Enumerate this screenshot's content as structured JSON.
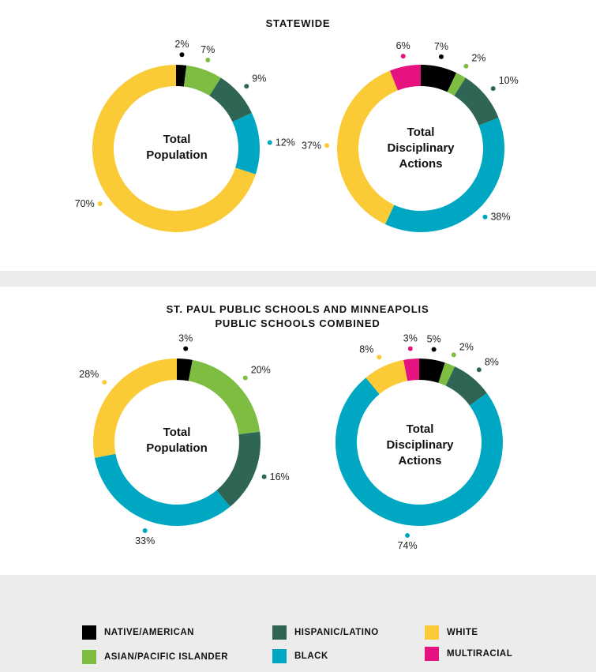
{
  "colors": {
    "native_american": "#000000",
    "asian_pacific_islander": "#7cbd42",
    "hispanic_latino": "#2f6555",
    "black": "#00a7c2",
    "white": "#fbcb37",
    "multiracial": "#e5127f"
  },
  "sections": [
    {
      "title": "STATEWIDE"
    },
    {
      "title": "ST. PAUL PUBLIC SCHOOLS AND MINNEAPOLIS PUBLIC SCHOOLS COMBINED"
    }
  ],
  "legend": [
    {
      "label": "NATIVE/AMERICAN",
      "color": "#000000"
    },
    {
      "label": "ASIAN/PACIFIC ISLANDER",
      "color": "#7cbd42"
    },
    {
      "label": "HISPANIC/LATINO",
      "color": "#2f6555"
    },
    {
      "label": "BLACK",
      "color": "#00a7c2"
    },
    {
      "label": "WHITE",
      "color": "#fbcb37"
    },
    {
      "label": "MULTIRACIAL",
      "color": "#e5127f"
    }
  ],
  "chart_data": [
    {
      "type": "pie",
      "section": "STATEWIDE",
      "center_label": [
        "Total",
        "Population"
      ],
      "slices": [
        {
          "group": "NATIVE/AMERICAN",
          "value": 2,
          "label": "2%",
          "color": "#000000"
        },
        {
          "group": "ASIAN/PACIFIC ISLANDER",
          "value": 7,
          "label": "7%",
          "color": "#7cbd42"
        },
        {
          "group": "HISPANIC/LATINO",
          "value": 9,
          "label": "9%",
          "color": "#2f6555"
        },
        {
          "group": "BLACK",
          "value": 12,
          "label": "12%",
          "color": "#00a7c2"
        },
        {
          "group": "WHITE",
          "value": 70,
          "label": "70%",
          "color": "#fbcb37"
        }
      ]
    },
    {
      "type": "pie",
      "section": "STATEWIDE",
      "center_label": [
        "Total",
        "Disciplinary",
        "Actions"
      ],
      "slices": [
        {
          "group": "NATIVE/AMERICAN",
          "value": 7,
          "label": "7%",
          "color": "#000000"
        },
        {
          "group": "ASIAN/PACIFIC ISLANDER",
          "value": 2,
          "label": "2%",
          "color": "#7cbd42"
        },
        {
          "group": "HISPANIC/LATINO",
          "value": 10,
          "label": "10%",
          "color": "#2f6555"
        },
        {
          "group": "BLACK",
          "value": 38,
          "label": "38%",
          "color": "#00a7c2"
        },
        {
          "group": "WHITE",
          "value": 37,
          "label": "37%",
          "color": "#fbcb37"
        },
        {
          "group": "MULTIRACIAL",
          "value": 6,
          "label": "6%",
          "color": "#e5127f"
        }
      ]
    },
    {
      "type": "pie",
      "section": "ST. PAUL PUBLIC SCHOOLS AND MINNEAPOLIS PUBLIC SCHOOLS COMBINED",
      "center_label": [
        "Total",
        "Population"
      ],
      "slices": [
        {
          "group": "NATIVE/AMERICAN",
          "value": 3,
          "label": "3%",
          "color": "#000000"
        },
        {
          "group": "ASIAN/PACIFIC ISLANDER",
          "value": 20,
          "label": "20%",
          "color": "#7cbd42"
        },
        {
          "group": "HISPANIC/LATINO",
          "value": 16,
          "label": "16%",
          "color": "#2f6555"
        },
        {
          "group": "BLACK",
          "value": 33,
          "label": "33%",
          "color": "#00a7c2"
        },
        {
          "group": "WHITE",
          "value": 28,
          "label": "28%",
          "color": "#fbcb37"
        }
      ]
    },
    {
      "type": "pie",
      "section": "ST. PAUL PUBLIC SCHOOLS AND MINNEAPOLIS PUBLIC SCHOOLS COMBINED",
      "center_label": [
        "Total",
        "Disciplinary",
        "Actions"
      ],
      "slices": [
        {
          "group": "NATIVE/AMERICAN",
          "value": 5,
          "label": "5%",
          "color": "#000000"
        },
        {
          "group": "ASIAN/PACIFIC ISLANDER",
          "value": 2,
          "label": "2%",
          "color": "#7cbd42"
        },
        {
          "group": "HISPANIC/LATINO",
          "value": 8,
          "label": "8%",
          "color": "#2f6555"
        },
        {
          "group": "BLACK",
          "value": 74,
          "label": "74%",
          "color": "#00a7c2"
        },
        {
          "group": "WHITE",
          "value": 8,
          "label": "8%",
          "color": "#fbcb37"
        },
        {
          "group": "MULTIRACIAL",
          "value": 3,
          "label": "3%",
          "color": "#e5127f"
        }
      ]
    }
  ]
}
